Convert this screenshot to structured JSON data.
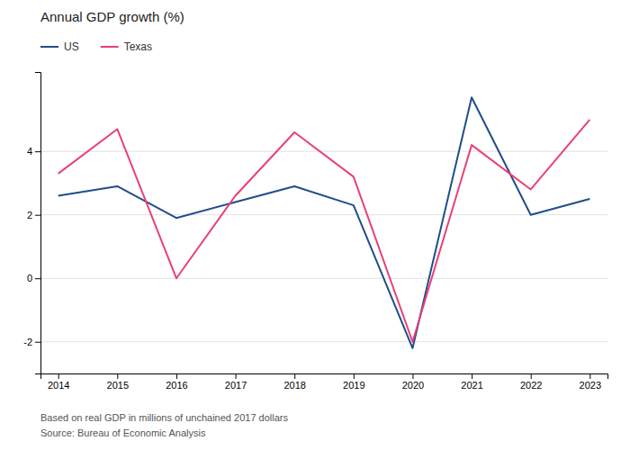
{
  "chart_data": {
    "type": "line",
    "title": "Annual GDP growth (%)",
    "x": [
      2014,
      2015,
      2016,
      2017,
      2018,
      2019,
      2020,
      2021,
      2022,
      2023
    ],
    "series": [
      {
        "name": "US",
        "color": "#1f4e8c",
        "values": [
          2.6,
          2.9,
          1.9,
          2.4,
          2.9,
          2.3,
          -2.2,
          5.7,
          2.0,
          2.5
        ]
      },
      {
        "name": "Texas",
        "color": "#e8407a",
        "values": [
          3.3,
          4.7,
          0.0,
          2.6,
          4.6,
          3.2,
          -2.0,
          4.2,
          2.8,
          5.0
        ]
      }
    ],
    "xlim": [
      2013.7,
      2023.3
    ],
    "xticks": [
      2014,
      2015,
      2016,
      2017,
      2018,
      2019,
      2020,
      2021,
      2022,
      2023
    ],
    "ylim": [
      -3.0,
      6.5
    ],
    "yticks": [
      -2,
      0,
      2,
      4
    ],
    "grid": true,
    "legend": "top-left",
    "annotations": [
      "Based on real GDP in millions of unchained 2017 dollars",
      "Source: Bureau of Economic Analysis"
    ]
  }
}
